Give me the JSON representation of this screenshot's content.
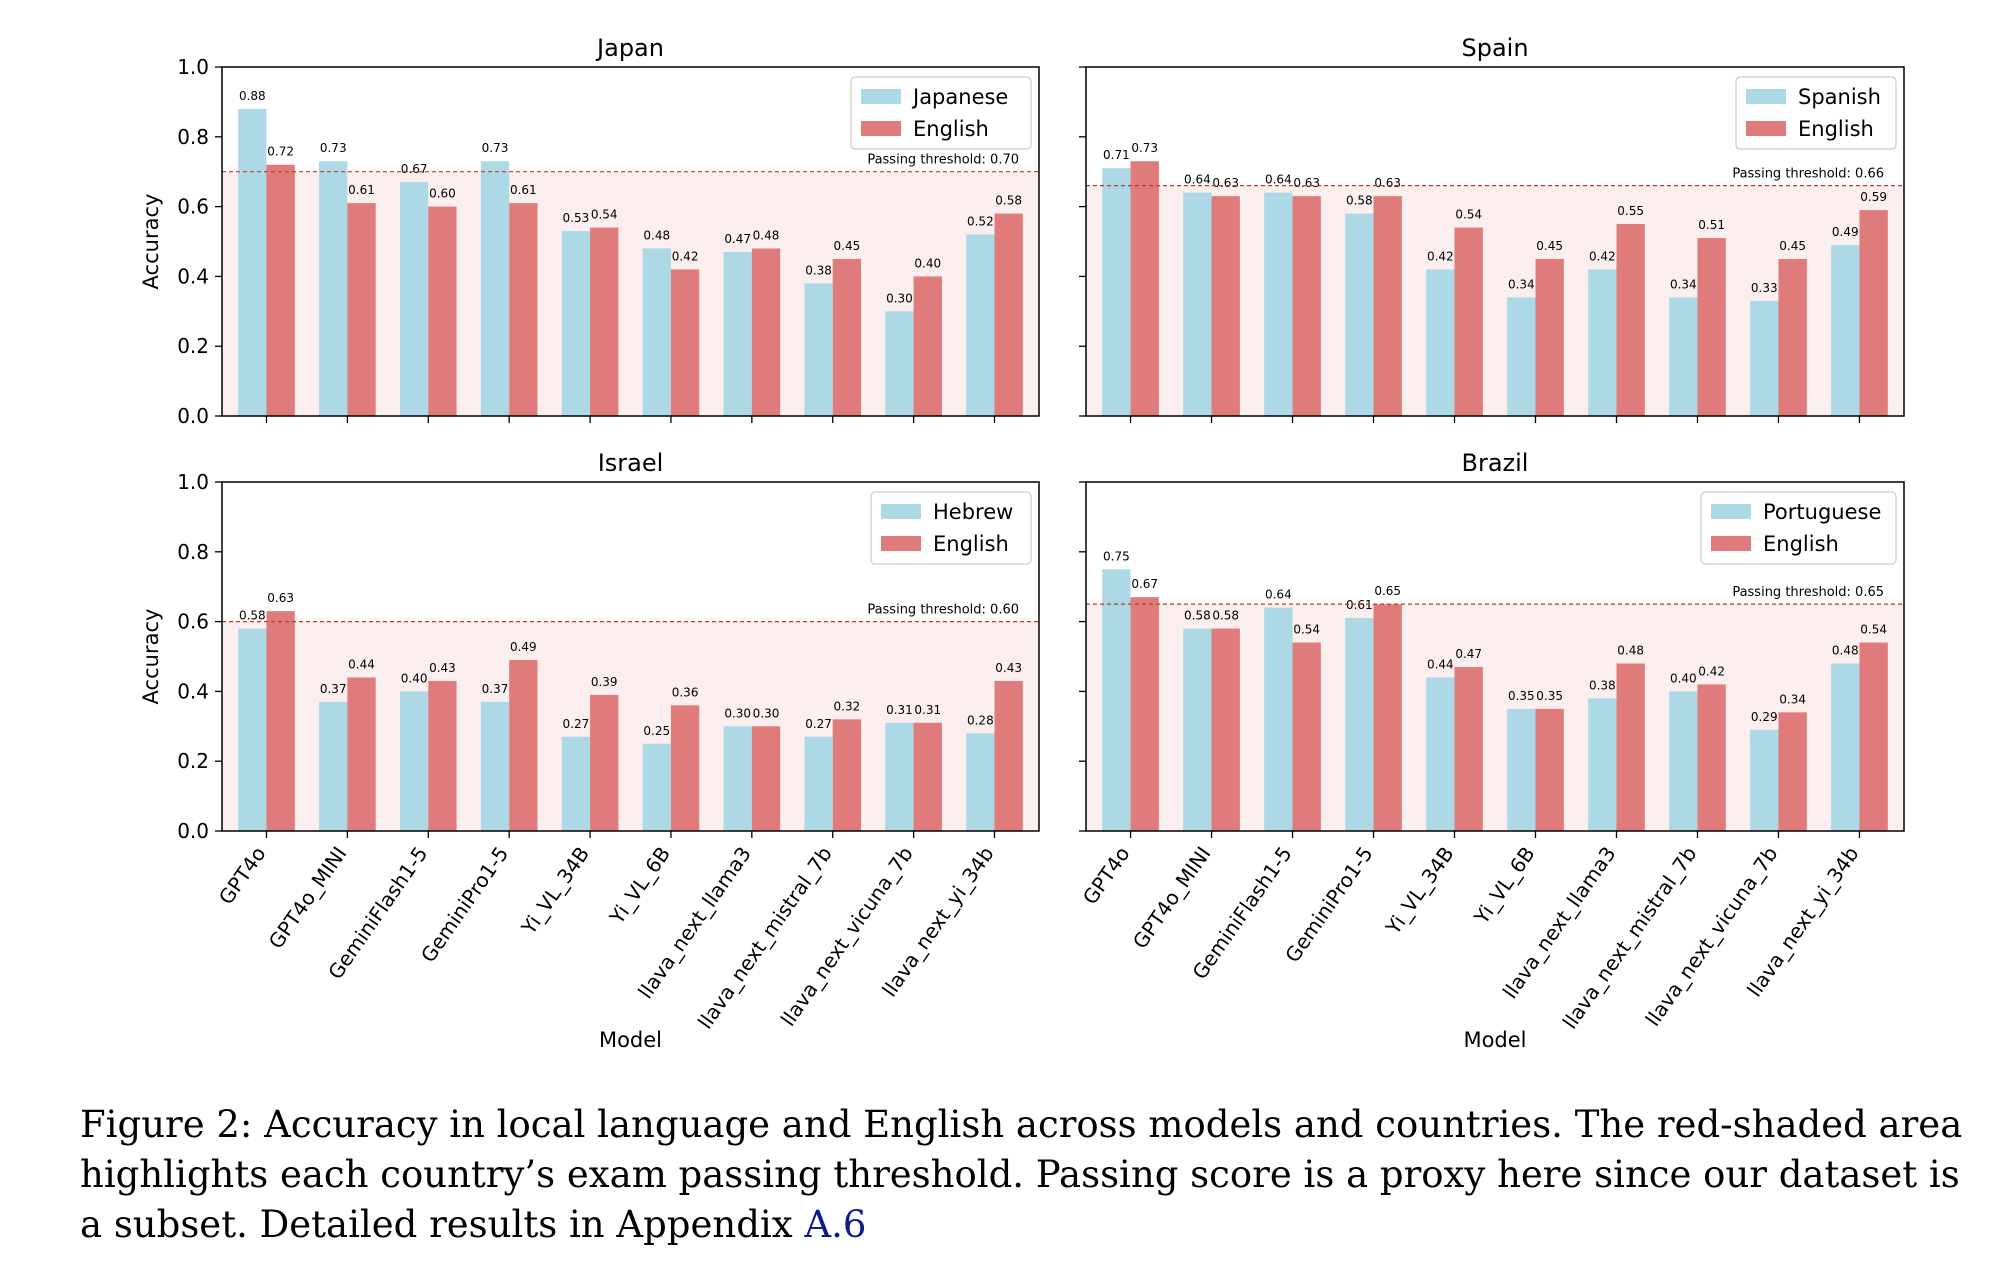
{
  "chart_data": [
    {
      "type": "bar",
      "title": "Japan",
      "xlabel": "",
      "ylabel": "Accuracy",
      "ylim": [
        0,
        1.0
      ],
      "yticks": [
        "0.0",
        "0.2",
        "0.4",
        "0.6",
        "0.8",
        "1.0"
      ],
      "categories": [
        "GPT4o",
        "GPT4o_MINI",
        "GeminiFlash1-5",
        "GeminiPro1-5",
        "Yi_VL_34B",
        "Yi_VL_6B",
        "llava_next_llama3",
        "llava_next_mistral_7b",
        "llava_next_vicuna_7b",
        "llava_next_yi_34b"
      ],
      "show_category_labels": false,
      "series": [
        {
          "name": "Japanese",
          "values": [
            0.88,
            0.73,
            0.67,
            0.73,
            0.53,
            0.48,
            0.47,
            0.38,
            0.3,
            0.52
          ],
          "labels": [
            "0.88",
            "0.73",
            "0.67",
            "0.73",
            "0.53",
            "0.48",
            "0.47",
            "0.38",
            "0.30",
            "0.52"
          ]
        },
        {
          "name": "English",
          "values": [
            0.72,
            0.61,
            0.6,
            0.61,
            0.54,
            0.42,
            0.48,
            0.45,
            0.4,
            0.58
          ],
          "labels": [
            "0.72",
            "0.61",
            "0.60",
            "0.61",
            "0.54",
            "0.42",
            "0.48",
            "0.45",
            "0.40",
            "0.58"
          ]
        }
      ],
      "threshold": 0.7,
      "threshold_label": "Passing threshold: 0.70",
      "legend_position": "top-right"
    },
    {
      "type": "bar",
      "title": "Spain",
      "xlabel": "",
      "ylabel": "",
      "ylim": [
        0,
        1.0
      ],
      "yticks": [],
      "categories": [
        "GPT4o",
        "GPT4o_MINI",
        "GeminiFlash1-5",
        "GeminiPro1-5",
        "Yi_VL_34B",
        "Yi_VL_6B",
        "llava_next_llama3",
        "llava_next_mistral_7b",
        "llava_next_vicuna_7b",
        "llava_next_yi_34b"
      ],
      "show_category_labels": false,
      "series": [
        {
          "name": "Spanish",
          "values": [
            0.71,
            0.64,
            0.64,
            0.58,
            0.42,
            0.34,
            0.42,
            0.34,
            0.33,
            0.49
          ],
          "labels": [
            "0.71",
            "0.64",
            "0.64",
            "0.58",
            "0.42",
            "0.34",
            "0.42",
            "0.34",
            "0.33",
            "0.49"
          ]
        },
        {
          "name": "English",
          "values": [
            0.73,
            0.63,
            0.63,
            0.63,
            0.54,
            0.45,
            0.55,
            0.51,
            0.45,
            0.59
          ],
          "labels": [
            "0.73",
            "0.63",
            "0.63",
            "0.63",
            "0.54",
            "0.45",
            "0.55",
            "0.51",
            "0.45",
            "0.59"
          ]
        }
      ],
      "threshold": 0.66,
      "threshold_label": "Passing threshold: 0.66",
      "legend_position": "top-right"
    },
    {
      "type": "bar",
      "title": "Israel",
      "xlabel": "Model",
      "ylabel": "Accuracy",
      "ylim": [
        0,
        1.0
      ],
      "yticks": [
        "0.0",
        "0.2",
        "0.4",
        "0.6",
        "0.8",
        "1.0"
      ],
      "categories": [
        "GPT4o",
        "GPT4o_MINI",
        "GeminiFlash1-5",
        "GeminiPro1-5",
        "Yi_VL_34B",
        "Yi_VL_6B",
        "llava_next_llama3",
        "llava_next_mistral_7b",
        "llava_next_vicuna_7b",
        "llava_next_yi_34b"
      ],
      "show_category_labels": true,
      "series": [
        {
          "name": "Hebrew",
          "values": [
            0.58,
            0.37,
            0.4,
            0.37,
            0.27,
            0.25,
            0.3,
            0.27,
            0.31,
            0.28
          ],
          "labels": [
            "0.58",
            "0.37",
            "0.40",
            "0.37",
            "0.27",
            "0.25",
            "0.30",
            "0.27",
            "0.31",
            "0.28"
          ]
        },
        {
          "name": "English",
          "values": [
            0.63,
            0.44,
            0.43,
            0.49,
            0.39,
            0.36,
            0.3,
            0.32,
            0.31,
            0.43
          ],
          "labels": [
            "0.63",
            "0.44",
            "0.43",
            "0.49",
            "0.39",
            "0.36",
            "0.30",
            "0.32",
            "0.31",
            "0.43"
          ]
        }
      ],
      "threshold": 0.6,
      "threshold_label": "Passing threshold: 0.60",
      "legend_position": "top-right"
    },
    {
      "type": "bar",
      "title": "Brazil",
      "xlabel": "Model",
      "ylabel": "",
      "ylim": [
        0,
        1.0
      ],
      "yticks": [],
      "categories": [
        "GPT4o",
        "GPT4o_MINI",
        "GeminiFlash1-5",
        "GeminiPro1-5",
        "Yi_VL_34B",
        "Yi_VL_6B",
        "llava_next_llama3",
        "llava_next_mistral_7b",
        "llava_next_vicuna_7b",
        "llava_next_yi_34b"
      ],
      "show_category_labels": true,
      "series": [
        {
          "name": "Portuguese",
          "values": [
            0.75,
            0.58,
            0.64,
            0.61,
            0.44,
            0.35,
            0.38,
            0.4,
            0.29,
            0.48
          ],
          "labels": [
            "0.75",
            "0.58",
            "0.64",
            "0.61",
            "0.44",
            "0.35",
            "0.38",
            "0.40",
            "0.29",
            "0.48"
          ]
        },
        {
          "name": "English",
          "values": [
            0.67,
            0.58,
            0.54,
            0.65,
            0.47,
            0.35,
            0.48,
            0.42,
            0.34,
            0.54
          ],
          "labels": [
            "0.67",
            "0.58",
            "0.54",
            "0.65",
            "0.47",
            "0.35",
            "0.48",
            "0.42",
            "0.34",
            "0.54"
          ]
        }
      ],
      "threshold": 0.65,
      "threshold_label": "Passing threshold: 0.65",
      "legend_position": "top-right"
    }
  ],
  "colors": {
    "local": "#add8e6",
    "english": "#e07b7b",
    "threshold_line": "#c0392b",
    "threshold_shade": "#fbeeee"
  },
  "caption": {
    "text": "Figure 2: Accuracy in local language and English across models and countries. The red-shaded area highlights each country’s exam passing threshold. Passing score is a proxy here since our dataset is a subset. Detailed results in Appendix ",
    "ref": "A.6"
  }
}
